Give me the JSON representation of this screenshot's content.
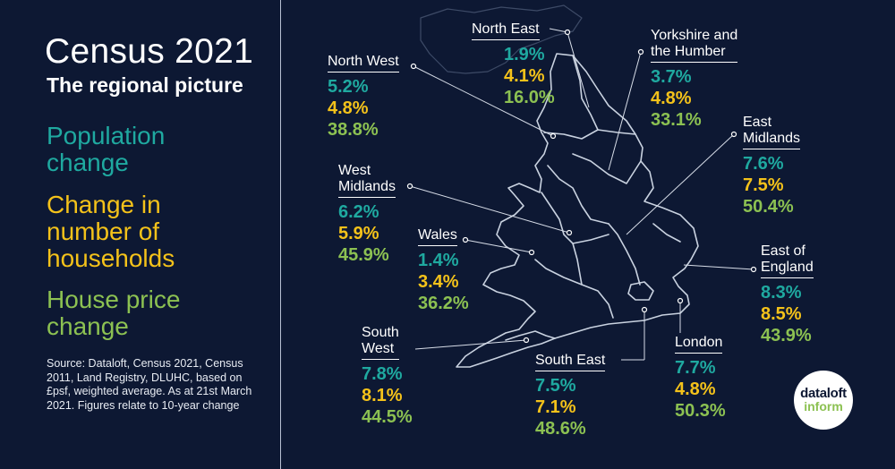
{
  "title": "Census 2021",
  "subtitle": "The regional picture",
  "legend": {
    "population": [
      "Population",
      "change"
    ],
    "households": [
      "Change in",
      "number of",
      "households"
    ],
    "house_price": [
      "House price",
      "change"
    ]
  },
  "source": "Source: Dataloft, Census 2021, Census 2011, Land Registry, DLUHC, based on £psf, weighted average. As at 21st March 2021. Figures relate to 10-year change",
  "logo": {
    "line1": "dataloft",
    "line2": "inform"
  },
  "colors": {
    "population": "#1fa9a0",
    "households": "#f4c21a",
    "house_price": "#8cc152",
    "background": "#0d1833"
  },
  "regions": [
    {
      "name": [
        "North West"
      ],
      "population": "5.2%",
      "households": "4.8%",
      "house_price": "38.8%"
    },
    {
      "name": [
        "North East"
      ],
      "population": "1.9%",
      "households": "4.1%",
      "house_price": "16.0%"
    },
    {
      "name": [
        "Yorkshire and",
        "the Humber"
      ],
      "population": "3.7%",
      "households": "4.8%",
      "house_price": "33.1%"
    },
    {
      "name": [
        "East",
        "Midlands"
      ],
      "population": "7.6%",
      "households": "7.5%",
      "house_price": "50.4%"
    },
    {
      "name": [
        "West",
        "Midlands"
      ],
      "population": "6.2%",
      "households": "5.9%",
      "house_price": "45.9%"
    },
    {
      "name": [
        "Wales"
      ],
      "population": "1.4%",
      "households": "3.4%",
      "house_price": "36.2%"
    },
    {
      "name": [
        "East of",
        "England"
      ],
      "population": "8.3%",
      "households": "8.5%",
      "house_price": "43.9%"
    },
    {
      "name": [
        "South",
        "West"
      ],
      "population": "7.8%",
      "households": "8.1%",
      "house_price": "44.5%"
    },
    {
      "name": [
        "South East"
      ],
      "population": "7.5%",
      "households": "7.1%",
      "house_price": "48.6%"
    },
    {
      "name": [
        "London"
      ],
      "population": "7.7%",
      "households": "4.8%",
      "house_price": "50.3%"
    }
  ]
}
